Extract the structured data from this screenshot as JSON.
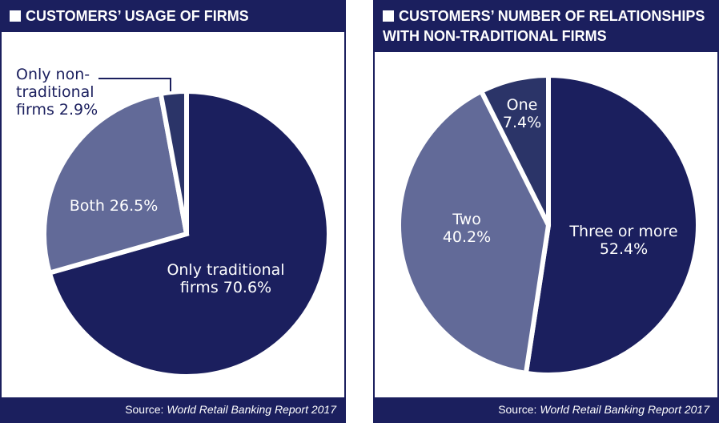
{
  "panels": [
    {
      "title": "CUSTOMERS’ USAGE OF FIRMS",
      "source_prefix": "Source:",
      "source_title": "World Retail Banking Report 2017"
    },
    {
      "title": "CUSTOMERS’ NUMBER OF RELATIONSHIPS WITH NON-TRADITIONAL FIRMS",
      "source_prefix": "Source:",
      "source_title": "World Retail Banking Report 2017"
    }
  ],
  "colors": {
    "navy": "#1b1f5e",
    "slate": "#626a98",
    "mid": "#2b3468",
    "white": "#ffffff"
  },
  "chart_data": [
    {
      "type": "pie",
      "title": "CUSTOMERS’ USAGE OF FIRMS",
      "slices": [
        {
          "label": "Only traditional firms",
          "value": 70.6,
          "text": [
            "Only traditional",
            "firms 70.6%"
          ],
          "color": "navy"
        },
        {
          "label": "Both",
          "value": 26.5,
          "text": [
            "Both 26.5%"
          ],
          "color": "slate"
        },
        {
          "label": "Only non-traditional firms",
          "value": 2.9,
          "text": [
            "Only non-",
            "traditional",
            "firms 2.9%"
          ],
          "color": "mid"
        }
      ]
    },
    {
      "type": "pie",
      "title": "CUSTOMERS’ NUMBER OF RELATIONSHIPS WITH NON-TRADITIONAL FIRMS",
      "slices": [
        {
          "label": "Three or more",
          "value": 52.4,
          "text": [
            "Three or more",
            "52.4%"
          ],
          "color": "navy"
        },
        {
          "label": "Two",
          "value": 40.2,
          "text": [
            "Two",
            "40.2%"
          ],
          "color": "slate"
        },
        {
          "label": "One",
          "value": 7.4,
          "text": [
            "One",
            "7.4%"
          ],
          "color": "mid"
        }
      ]
    }
  ]
}
